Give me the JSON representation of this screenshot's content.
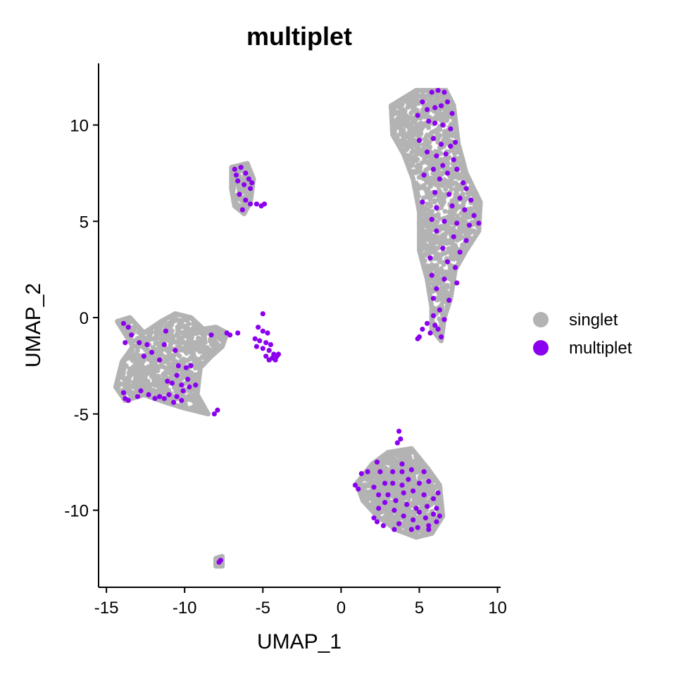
{
  "chart_data": {
    "type": "scatter",
    "title": "multiplet",
    "xlabel": "UMAP_1",
    "ylabel": "UMAP_2",
    "xlim": [
      -15.5,
      10.2
    ],
    "ylim": [
      -14.0,
      13.2
    ],
    "x_ticks": [
      -15,
      -10,
      -5,
      0,
      5,
      10
    ],
    "x_tick_labels": [
      "-15",
      "-10",
      "-5",
      "0",
      "5",
      "10"
    ],
    "y_ticks": [
      -10,
      -5,
      0,
      5,
      10
    ],
    "y_tick_labels": [
      "-10",
      "-5",
      "0",
      "5",
      "10"
    ],
    "grid": false,
    "legend": {
      "placement": "right",
      "entries": [
        {
          "label": "singlet",
          "color": "#b3b3b3"
        },
        {
          "label": "multiplet",
          "color": "#8b00ee"
        }
      ]
    },
    "series": [
      {
        "name": "singlet",
        "color": "#b3b3b3",
        "clusters": [
          {
            "polygon": [
              [
                3.2,
                11.0
              ],
              [
                4.8,
                11.8
              ],
              [
                6.7,
                11.8
              ],
              [
                7.2,
                11.0
              ],
              [
                7.5,
                9.0
              ],
              [
                8.0,
                7.5
              ],
              [
                8.9,
                6.0
              ],
              [
                8.8,
                4.5
              ],
              [
                8.0,
                3.5
              ],
              [
                7.3,
                2.5
              ],
              [
                7.0,
                1.0
              ],
              [
                6.6,
                0.0
              ],
              [
                6.4,
                -1.2
              ],
              [
                5.8,
                -0.6
              ],
              [
                5.8,
                0.5
              ],
              [
                5.5,
                2.0
              ],
              [
                5.0,
                3.5
              ],
              [
                5.0,
                5.5
              ],
              [
                4.6,
                7.2
              ],
              [
                4.0,
                8.5
              ],
              [
                3.3,
                9.5
              ]
            ],
            "n": 1300
          },
          {
            "polygon": [
              [
                -7.0,
                7.8
              ],
              [
                -6.0,
                8.0
              ],
              [
                -5.6,
                7.2
              ],
              [
                -5.8,
                6.0
              ],
              [
                -6.2,
                5.4
              ],
              [
                -6.8,
                5.8
              ],
              [
                -7.0,
                6.7
              ]
            ],
            "n": 140
          },
          {
            "polygon": [
              [
                -14.3,
                -0.2
              ],
              [
                -13.5,
                0.0
              ],
              [
                -12.6,
                -0.8
              ],
              [
                -11.5,
                -0.2
              ],
              [
                -10.6,
                0.2
              ],
              [
                -9.6,
                0.0
              ],
              [
                -8.8,
                -0.6
              ],
              [
                -8.0,
                -0.5
              ],
              [
                -7.3,
                -0.8
              ],
              [
                -7.6,
                -1.5
              ],
              [
                -8.3,
                -2.0
              ],
              [
                -9.0,
                -2.6
              ],
              [
                -9.2,
                -4.0
              ],
              [
                -8.5,
                -5.0
              ],
              [
                -10.0,
                -4.7
              ],
              [
                -11.2,
                -4.4
              ],
              [
                -12.6,
                -4.0
              ],
              [
                -13.8,
                -4.3
              ],
              [
                -14.4,
                -3.6
              ],
              [
                -14.0,
                -2.3
              ],
              [
                -13.3,
                -1.5
              ]
            ],
            "n": 900
          },
          {
            "polygon": [
              [
                1.0,
                -8.6
              ],
              [
                2.0,
                -7.6
              ],
              [
                3.0,
                -7.0
              ],
              [
                4.5,
                -6.8
              ],
              [
                5.5,
                -7.8
              ],
              [
                6.3,
                -8.7
              ],
              [
                6.5,
                -10.3
              ],
              [
                5.8,
                -11.2
              ],
              [
                4.8,
                -11.4
              ],
              [
                3.5,
                -11.0
              ],
              [
                2.3,
                -10.3
              ],
              [
                1.4,
                -9.5
              ]
            ],
            "n": 950
          },
          {
            "polygon": [
              [
                -8.0,
                -12.5
              ],
              [
                -7.6,
                -12.4
              ],
              [
                -7.6,
                -12.9
              ],
              [
                -8.0,
                -12.9
              ]
            ],
            "n": 10
          }
        ]
      },
      {
        "name": "multiplet",
        "color": "#8b00ee",
        "points": [
          [
            5.8,
            11.7
          ],
          [
            6.2,
            11.8
          ],
          [
            6.6,
            11.7
          ],
          [
            5.2,
            11.2
          ],
          [
            5.5,
            10.8
          ],
          [
            6.0,
            10.9
          ],
          [
            6.4,
            11.0
          ],
          [
            6.8,
            11.2
          ],
          [
            7.1,
            10.6
          ],
          [
            4.9,
            10.5
          ],
          [
            5.6,
            10.2
          ],
          [
            6.0,
            10.1
          ],
          [
            6.5,
            10.0
          ],
          [
            7.0,
            9.8
          ],
          [
            5.0,
            9.2
          ],
          [
            5.9,
            9.3
          ],
          [
            6.4,
            9.0
          ],
          [
            7.0,
            8.9
          ],
          [
            7.3,
            9.1
          ],
          [
            6.7,
            8.5
          ],
          [
            5.5,
            8.6
          ],
          [
            6.1,
            8.4
          ],
          [
            7.2,
            8.2
          ],
          [
            6.5,
            7.9
          ],
          [
            5.9,
            7.7
          ],
          [
            6.8,
            7.5
          ],
          [
            7.4,
            7.7
          ],
          [
            5.3,
            7.4
          ],
          [
            6.3,
            7.2
          ],
          [
            7.8,
            7.0
          ],
          [
            8.0,
            6.7
          ],
          [
            6.0,
            6.5
          ],
          [
            6.9,
            6.4
          ],
          [
            7.6,
            6.2
          ],
          [
            8.3,
            6.1
          ],
          [
            5.2,
            6.0
          ],
          [
            6.1,
            5.7
          ],
          [
            7.1,
            5.8
          ],
          [
            7.9,
            5.6
          ],
          [
            8.5,
            5.3
          ],
          [
            5.8,
            5.1
          ],
          [
            6.6,
            5.0
          ],
          [
            7.4,
            4.9
          ],
          [
            8.2,
            4.8
          ],
          [
            8.8,
            4.9
          ],
          [
            6.1,
            4.5
          ],
          [
            7.2,
            4.2
          ],
          [
            8.0,
            4.0
          ],
          [
            6.5,
            3.6
          ],
          [
            7.6,
            3.4
          ],
          [
            5.7,
            3.1
          ],
          [
            6.8,
            2.9
          ],
          [
            7.3,
            2.6
          ],
          [
            5.8,
            2.2
          ],
          [
            6.6,
            2.0
          ],
          [
            7.4,
            1.8
          ],
          [
            6.1,
            1.5
          ],
          [
            5.9,
            1.0
          ],
          [
            6.9,
            0.9
          ],
          [
            6.3,
            0.4
          ],
          [
            5.9,
            0.1
          ],
          [
            6.6,
            -0.1
          ],
          [
            5.5,
            -0.3
          ],
          [
            5.2,
            -0.6
          ],
          [
            5.7,
            -0.8
          ],
          [
            5.0,
            -1.0
          ],
          [
            6.2,
            -0.6
          ],
          [
            6.4,
            -1.0
          ],
          [
            4.9,
            -1.1
          ],
          [
            6.0,
            -0.4
          ],
          [
            -6.8,
            7.7
          ],
          [
            -6.4,
            7.8
          ],
          [
            -6.1,
            7.5
          ],
          [
            -6.6,
            7.1
          ],
          [
            -6.2,
            6.9
          ],
          [
            -5.8,
            6.7
          ],
          [
            -5.7,
            7.0
          ],
          [
            -6.5,
            6.4
          ],
          [
            -6.1,
            6.1
          ],
          [
            -5.8,
            5.9
          ],
          [
            -5.4,
            5.9
          ],
          [
            -5.1,
            5.8
          ],
          [
            -4.9,
            5.9
          ],
          [
            -6.3,
            5.6
          ],
          [
            -6.7,
            7.4
          ],
          [
            -5.9,
            7.2
          ],
          [
            -13.9,
            -0.3
          ],
          [
            -13.6,
            -0.5
          ],
          [
            -13.4,
            -0.9
          ],
          [
            -13.8,
            -1.3
          ],
          [
            -12.9,
            -1.3
          ],
          [
            -12.4,
            -1.4
          ],
          [
            -11.2,
            -0.7
          ],
          [
            -11.3,
            -1.4
          ],
          [
            -12.6,
            -2.0
          ],
          [
            -12.1,
            -1.8
          ],
          [
            -11.6,
            -2.2
          ],
          [
            -10.6,
            -1.7
          ],
          [
            -10.4,
            -2.5
          ],
          [
            -9.9,
            -2.6
          ],
          [
            -9.6,
            -2.5
          ],
          [
            -10.5,
            -3.0
          ],
          [
            -9.8,
            -3.2
          ],
          [
            -11.1,
            -3.3
          ],
          [
            -10.8,
            -3.4
          ],
          [
            -10.2,
            -3.5
          ],
          [
            -9.7,
            -3.6
          ],
          [
            -10.1,
            -3.8
          ],
          [
            -9.3,
            -3.5
          ],
          [
            -11.0,
            -4.0
          ],
          [
            -10.5,
            -4.1
          ],
          [
            -10.2,
            -4.3
          ],
          [
            -11.3,
            -4.2
          ],
          [
            -11.6,
            -4.1
          ],
          [
            -12.8,
            -3.8
          ],
          [
            -12.3,
            -4.0
          ],
          [
            -11.9,
            -4.2
          ],
          [
            -13.8,
            -4.2
          ],
          [
            -13.9,
            -3.9
          ],
          [
            -13.0,
            -4.1
          ],
          [
            -13.6,
            -4.3
          ],
          [
            -10.7,
            -4.4
          ],
          [
            -8.1,
            -5.0
          ],
          [
            -7.9,
            -4.8
          ],
          [
            -7.3,
            -0.8
          ],
          [
            -7.1,
            -0.9
          ],
          [
            -6.6,
            -0.8
          ],
          [
            -8.3,
            -0.9
          ],
          [
            -5.0,
            0.2
          ],
          [
            -5.3,
            -0.5
          ],
          [
            -5.0,
            -0.7
          ],
          [
            -4.7,
            -0.8
          ],
          [
            -5.5,
            -1.1
          ],
          [
            -5.2,
            -1.2
          ],
          [
            -4.8,
            -1.3
          ],
          [
            -4.5,
            -1.4
          ],
          [
            -5.4,
            -1.5
          ],
          [
            -5.0,
            -1.6
          ],
          [
            -4.6,
            -1.7
          ],
          [
            -4.3,
            -1.9
          ],
          [
            -4.8,
            -2.0
          ],
          [
            -4.4,
            -2.1
          ],
          [
            -4.1,
            -2.0
          ],
          [
            -4.6,
            -2.2
          ],
          [
            -4.2,
            -2.2
          ],
          [
            -4.0,
            -1.9
          ],
          [
            3.7,
            -5.9
          ],
          [
            3.8,
            -6.3
          ],
          [
            3.6,
            -6.5
          ],
          [
            2.3,
            -7.5
          ],
          [
            3.9,
            -7.6
          ],
          [
            1.3,
            -8.1
          ],
          [
            1.7,
            -8.0
          ],
          [
            2.5,
            -8.0
          ],
          [
            3.3,
            -8.0
          ],
          [
            3.9,
            -8.0
          ],
          [
            4.5,
            -7.9
          ],
          [
            5.3,
            -8.0
          ],
          [
            4.3,
            -8.4
          ],
          [
            3.9,
            -8.7
          ],
          [
            3.3,
            -8.6
          ],
          [
            2.8,
            -8.6
          ],
          [
            2.1,
            -8.8
          ],
          [
            1.1,
            -8.9
          ],
          [
            0.9,
            -8.7
          ],
          [
            5.0,
            -8.6
          ],
          [
            5.6,
            -8.5
          ],
          [
            2.4,
            -9.2
          ],
          [
            3.0,
            -9.2
          ],
          [
            4.0,
            -9.1
          ],
          [
            4.6,
            -9.0
          ],
          [
            5.3,
            -9.2
          ],
          [
            5.9,
            -9.4
          ],
          [
            6.2,
            -9.1
          ],
          [
            2.8,
            -9.6
          ],
          [
            3.5,
            -9.5
          ],
          [
            4.2,
            -9.7
          ],
          [
            4.8,
            -9.9
          ],
          [
            5.5,
            -9.8
          ],
          [
            6.1,
            -9.9
          ],
          [
            5.9,
            -10.2
          ],
          [
            6.3,
            -10.3
          ],
          [
            2.4,
            -9.9
          ],
          [
            3.4,
            -10.0
          ],
          [
            4.0,
            -10.3
          ],
          [
            4.6,
            -10.5
          ],
          [
            5.4,
            -10.4
          ],
          [
            2.3,
            -10.6
          ],
          [
            3.7,
            -10.7
          ],
          [
            4.9,
            -10.9
          ],
          [
            5.6,
            -10.8
          ],
          [
            6.1,
            -10.6
          ],
          [
            3.4,
            -11.0
          ],
          [
            4.5,
            -11.0
          ],
          [
            5.6,
            -11.0
          ],
          [
            2.1,
            -10.4
          ],
          [
            5.0,
            -10.1
          ],
          [
            2.7,
            -10.8
          ],
          [
            -7.8,
            -12.7
          ],
          [
            -7.7,
            -12.6
          ]
        ]
      }
    ]
  }
}
